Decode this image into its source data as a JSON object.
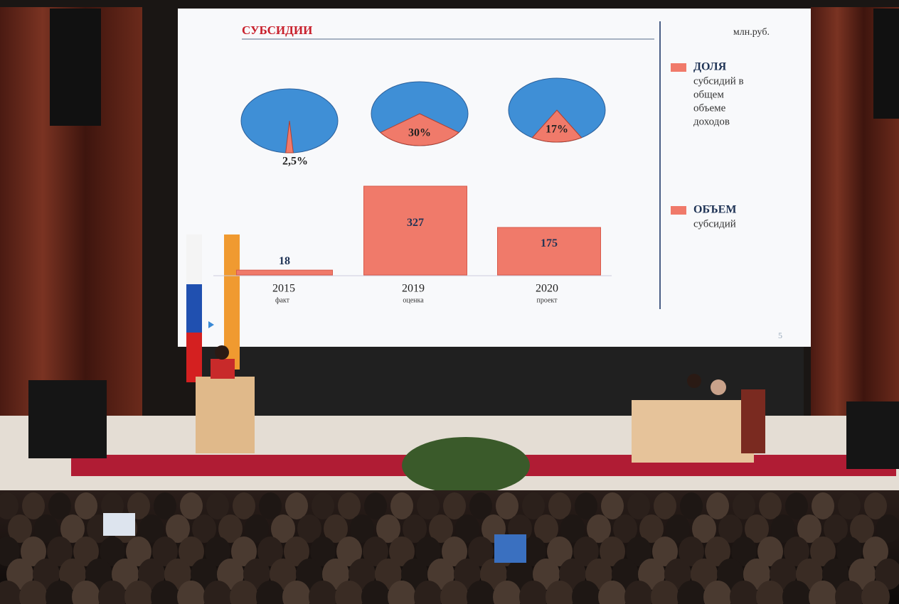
{
  "slide": {
    "unit": "млн.руб.",
    "page": "5",
    "legend": [
      {
        "name": "ДОЛЯ",
        "description": [
          "субсидий в",
          "общем",
          "объеме",
          "доходов"
        ]
      },
      {
        "name": "ОБЪЕМ",
        "description": [
          "субсидий"
        ]
      }
    ]
  },
  "chart_data": [
    {
      "type": "pie",
      "values": [
        2.5
      ],
      "value_labels": [
        "2,5%"
      ],
      "color": "#f07a6a",
      "rest_color": "#3f8fd6"
    },
    {
      "type": "pie",
      "values": [
        30
      ],
      "value_labels": [
        "30%"
      ],
      "color": "#f07a6a",
      "rest_color": "#3f8fd6"
    },
    {
      "type": "pie",
      "values": [
        17
      ],
      "value_labels": [
        "17%"
      ],
      "color": "#f07a6a",
      "rest_color": "#3f8fd6"
    },
    {
      "type": "bar",
      "title": "СУБСИДИИ",
      "categories": [
        "2015",
        "2019",
        "2020"
      ],
      "subcategories": [
        "факт",
        "оценка",
        "проект"
      ],
      "values": [
        18,
        327,
        175
      ],
      "color": "#f07a6a"
    }
  ]
}
